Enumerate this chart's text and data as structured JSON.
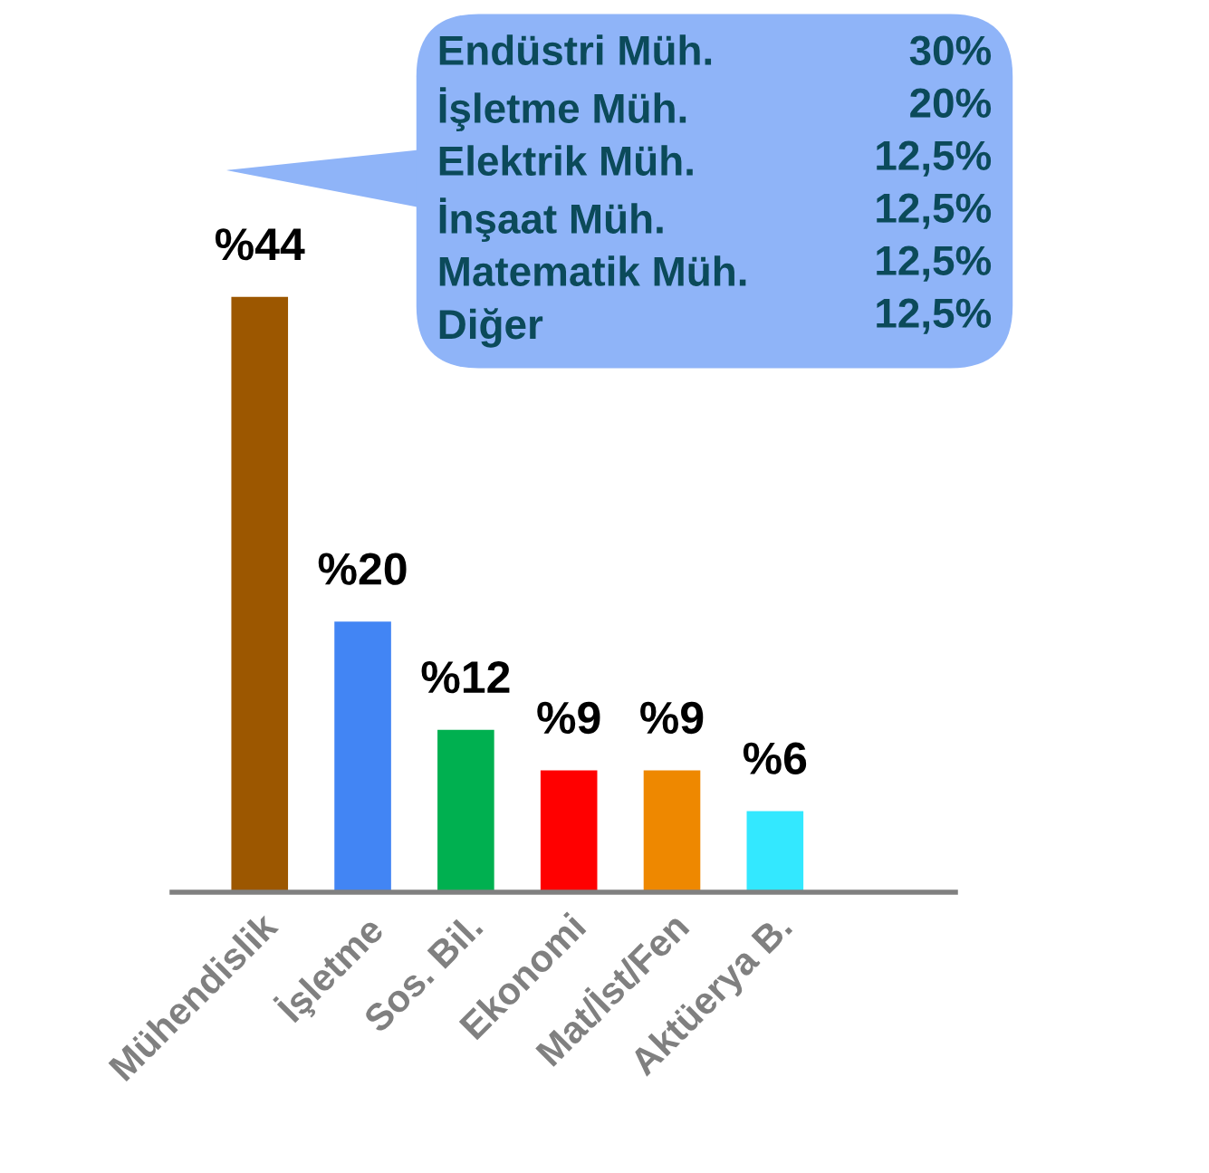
{
  "chart_data": {
    "type": "bar",
    "categories": [
      "Mühendislik",
      "İşletme",
      "Sos. Bil.",
      "Ekonomi",
      "Mat/İst/Fen",
      "Aktüerya B."
    ],
    "values": [
      44,
      20,
      12,
      9,
      9,
      6
    ],
    "value_labels": [
      "%44",
      "%20",
      "%12",
      "%9",
      "%9",
      "%6"
    ],
    "colors": [
      "#9c5700",
      "#4285f4",
      "#00b050",
      "#ff0000",
      "#ee8800",
      "#33e8ff"
    ],
    "grid": false,
    "legend": false,
    "annotations": [
      "Endüstri Müh.",
      "30%",
      "İşletme Müh.",
      "20%",
      "Elektrik Müh.",
      "12,5%",
      "İnşaat Müh.",
      "12,5%",
      "Matematik Müh.",
      "12,5%",
      "Diğer",
      "12,5%"
    ]
  }
}
